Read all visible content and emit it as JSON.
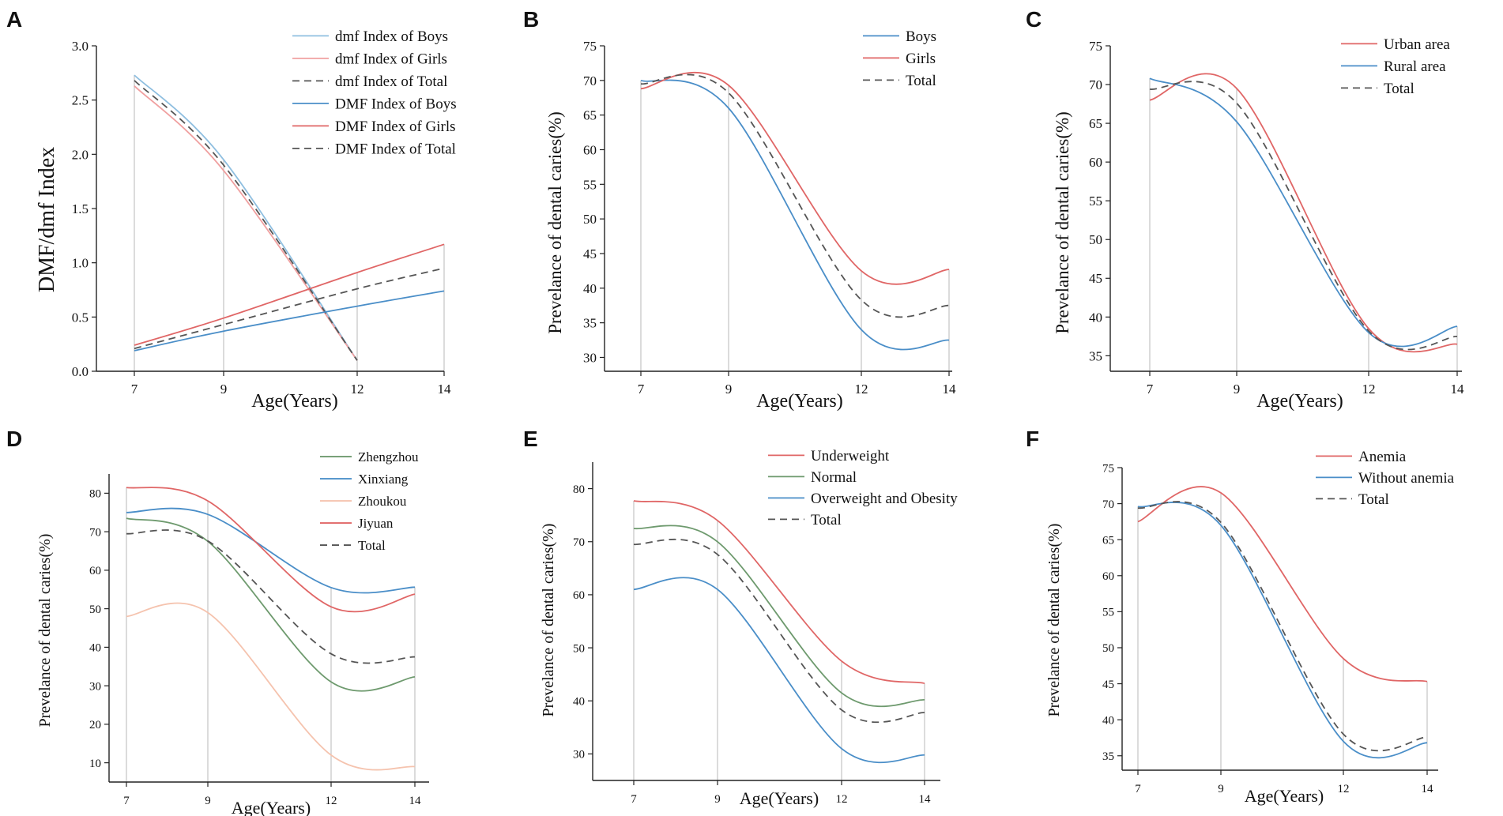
{
  "figure": {
    "background": "#ffffff"
  },
  "colors": {
    "red": "#e06666",
    "blue": "#4a8ec8",
    "green": "#6e9a6e",
    "pink": "#f5c3ae",
    "lightblue": "#8fbfe0",
    "lightred": "#f0a0a0",
    "dash": "#555555",
    "guide": "#c8c8c8"
  },
  "chart_data": [
    {
      "letter": "A",
      "type": "line",
      "title": "",
      "xlabel": "Age(Years)",
      "ylabel": "DMF/dmf Index",
      "x": [
        7,
        9,
        12,
        14
      ],
      "xticks": [
        "7",
        "9",
        "12",
        "14"
      ],
      "ylim": [
        0,
        3.0
      ],
      "yticks": [
        "0.0",
        "0.5",
        "1.0",
        "1.5",
        "2.0",
        "2.5",
        "3.0"
      ],
      "legend_position": "top-right",
      "series": [
        {
          "name": "dmf Index of Boys",
          "color": "lightblue",
          "dashed": false,
          "values": [
            2.73,
            1.95,
            0.1,
            null
          ]
        },
        {
          "name": "dmf Index of Girls",
          "color": "lightred",
          "dashed": false,
          "values": [
            2.63,
            1.85,
            0.1,
            null
          ]
        },
        {
          "name": "dmf Index of Total",
          "color": "dash",
          "dashed": true,
          "values": [
            2.68,
            1.9,
            0.1,
            null
          ]
        },
        {
          "name": "DMF Index of Boys",
          "color": "blue",
          "dashed": false,
          "values": [
            0.19,
            0.37,
            0.6,
            0.74
          ]
        },
        {
          "name": "DMF Index of Girls",
          "color": "red",
          "dashed": false,
          "values": [
            0.24,
            0.49,
            0.91,
            1.17
          ]
        },
        {
          "name": "DMF Index of Total",
          "color": "dash",
          "dashed": true,
          "values": [
            0.21,
            0.43,
            0.76,
            0.95
          ]
        }
      ]
    },
    {
      "letter": "B",
      "type": "line",
      "title": "",
      "xlabel": "Age(Years)",
      "ylabel": "Prevelance of dental caries(%)",
      "x": [
        7,
        9,
        12,
        14
      ],
      "xticks": [
        "7",
        "9",
        "12",
        "14"
      ],
      "ylim": [
        28,
        75
      ],
      "yticks": [
        "30",
        "35",
        "40",
        "45",
        "50",
        "55",
        "60",
        "65",
        "70",
        "75"
      ],
      "legend_position": "top-right",
      "series": [
        {
          "name": "Boys",
          "color": "blue",
          "dashed": false,
          "values": [
            70.0,
            66.0,
            34.0,
            32.5
          ]
        },
        {
          "name": "Girls",
          "color": "red",
          "dashed": false,
          "values": [
            68.8,
            69.3,
            42.5,
            42.7
          ]
        },
        {
          "name": "Total",
          "color": "dash",
          "dashed": true,
          "values": [
            69.5,
            68.2,
            38.3,
            37.5
          ]
        }
      ]
    },
    {
      "letter": "C",
      "type": "line",
      "title": "",
      "xlabel": "Age(Years)",
      "ylabel": "Prevelance of dental caries(%)",
      "x": [
        7,
        9,
        12,
        14
      ],
      "xticks": [
        "7",
        "9",
        "12",
        "14"
      ],
      "ylim": [
        33,
        75
      ],
      "yticks": [
        "35",
        "40",
        "45",
        "50",
        "55",
        "60",
        "65",
        "70",
        "75"
      ],
      "legend_position": "top-right",
      "series": [
        {
          "name": "Urban area",
          "color": "red",
          "dashed": false,
          "values": [
            68.0,
            69.5,
            38.5,
            36.5
          ]
        },
        {
          "name": "Rural area",
          "color": "blue",
          "dashed": false,
          "values": [
            70.8,
            65.2,
            38.0,
            38.8
          ]
        },
        {
          "name": "Total",
          "color": "dash",
          "dashed": true,
          "values": [
            69.4,
            67.6,
            38.2,
            37.5
          ]
        }
      ]
    },
    {
      "letter": "D",
      "type": "line",
      "title": "",
      "xlabel": "Age(Years)",
      "ylabel": "Prevelance of dental caries(%)",
      "x": [
        7,
        9,
        12,
        14
      ],
      "xticks": [
        "7",
        "9",
        "12",
        "14"
      ],
      "ylim": [
        5,
        85
      ],
      "yticks": [
        "10",
        "20",
        "30",
        "40",
        "50",
        "60",
        "70",
        "80"
      ],
      "legend_position": "top-right",
      "series": [
        {
          "name": "Zhengzhou",
          "color": "green",
          "dashed": false,
          "values": [
            73.5,
            67.5,
            31.0,
            32.3
          ]
        },
        {
          "name": "Xinxiang",
          "color": "blue",
          "dashed": false,
          "values": [
            75.0,
            74.5,
            55.5,
            55.6
          ]
        },
        {
          "name": "Zhoukou",
          "color": "pink",
          "dashed": false,
          "values": [
            48.0,
            49.0,
            12.0,
            9.0
          ]
        },
        {
          "name": "Jiyuan",
          "color": "red",
          "dashed": false,
          "values": [
            81.5,
            78.0,
            50.5,
            53.8
          ]
        },
        {
          "name": "Total",
          "color": "dash",
          "dashed": true,
          "values": [
            69.5,
            67.6,
            38.3,
            37.5
          ]
        }
      ]
    },
    {
      "letter": "E",
      "type": "line",
      "title": "",
      "xlabel": "Age(Years)",
      "ylabel": "Prevelance of dental caries(%)",
      "x": [
        7,
        9,
        12,
        14
      ],
      "xticks": [
        "7",
        "9",
        "12",
        "14"
      ],
      "ylim": [
        25,
        85
      ],
      "yticks": [
        "30",
        "40",
        "50",
        "60",
        "70",
        "80"
      ],
      "legend_position": "top-right",
      "series": [
        {
          "name": "Underweight",
          "color": "red",
          "dashed": false,
          "values": [
            77.7,
            74.0,
            47.5,
            43.3
          ]
        },
        {
          "name": "Normal",
          "color": "green",
          "dashed": false,
          "values": [
            72.5,
            70.0,
            41.5,
            40.2
          ]
        },
        {
          "name": "Overweight and Obesity",
          "color": "blue",
          "dashed": false,
          "values": [
            61.0,
            61.0,
            31.0,
            29.8
          ]
        },
        {
          "name": "Total",
          "color": "dash",
          "dashed": true,
          "values": [
            69.5,
            67.6,
            38.3,
            37.8
          ]
        }
      ]
    },
    {
      "letter": "F",
      "type": "line",
      "title": "",
      "xlabel": "Age(Years)",
      "ylabel": "Prevelance of dental caries(%)",
      "x": [
        7,
        9,
        12,
        14
      ],
      "xticks": [
        "7",
        "9",
        "12",
        "14"
      ],
      "ylim": [
        33,
        75
      ],
      "yticks": [
        "35",
        "40",
        "45",
        "50",
        "55",
        "60",
        "65",
        "70",
        "75"
      ],
      "legend_position": "top-right",
      "series": [
        {
          "name": "Anemia",
          "color": "red",
          "dashed": false,
          "values": [
            67.5,
            71.5,
            48.5,
            45.3
          ]
        },
        {
          "name": "Without anemia",
          "color": "blue",
          "dashed": false,
          "values": [
            69.6,
            67.0,
            37.0,
            36.8
          ]
        },
        {
          "name": "Total",
          "color": "dash",
          "dashed": true,
          "values": [
            69.4,
            67.4,
            38.0,
            37.6
          ]
        }
      ]
    }
  ]
}
